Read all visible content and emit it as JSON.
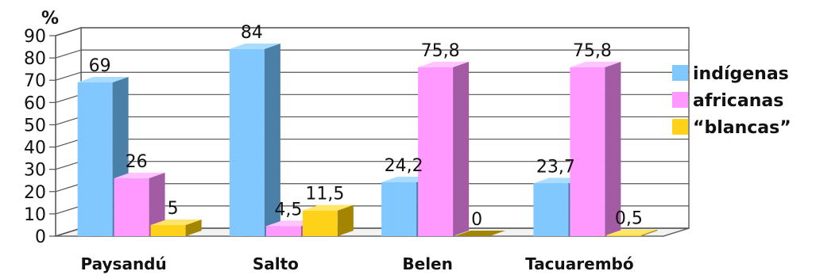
{
  "chart_data": {
    "type": "bar",
    "unit_label": "%",
    "categories": [
      "Paysandú",
      "Salto",
      "Belen",
      "Tacuarembó"
    ],
    "series": [
      {
        "name": "indígenas",
        "values": [
          69,
          84,
          24.2,
          23.7
        ],
        "labels": [
          "69",
          "84",
          "24,2",
          "23,7"
        ],
        "color": "#80c8ff",
        "side_color": "#4a7fa8",
        "top_color": "#a9dcff"
      },
      {
        "name": "africanas",
        "values": [
          26,
          4.5,
          75.8,
          75.8
        ],
        "labels": [
          "26",
          "4,5",
          "75,8",
          "75,8"
        ],
        "color": "#ff99ff",
        "side_color": "#a35ca3",
        "top_color": "#ffc4ff"
      },
      {
        "name": "“blancas”",
        "values": [
          5,
          11.5,
          0,
          0.5
        ],
        "labels": [
          "5",
          "11,5",
          "0",
          "0,5"
        ],
        "color": "#ffd21a",
        "side_color": "#a38500",
        "top_color": "#ffe56b"
      }
    ],
    "y_ticks": [
      "0",
      "10",
      "20",
      "30",
      "40",
      "50",
      "60",
      "70",
      "80",
      "90"
    ],
    "ylim": [
      0,
      90
    ],
    "grid": true,
    "legend_position": "right"
  }
}
